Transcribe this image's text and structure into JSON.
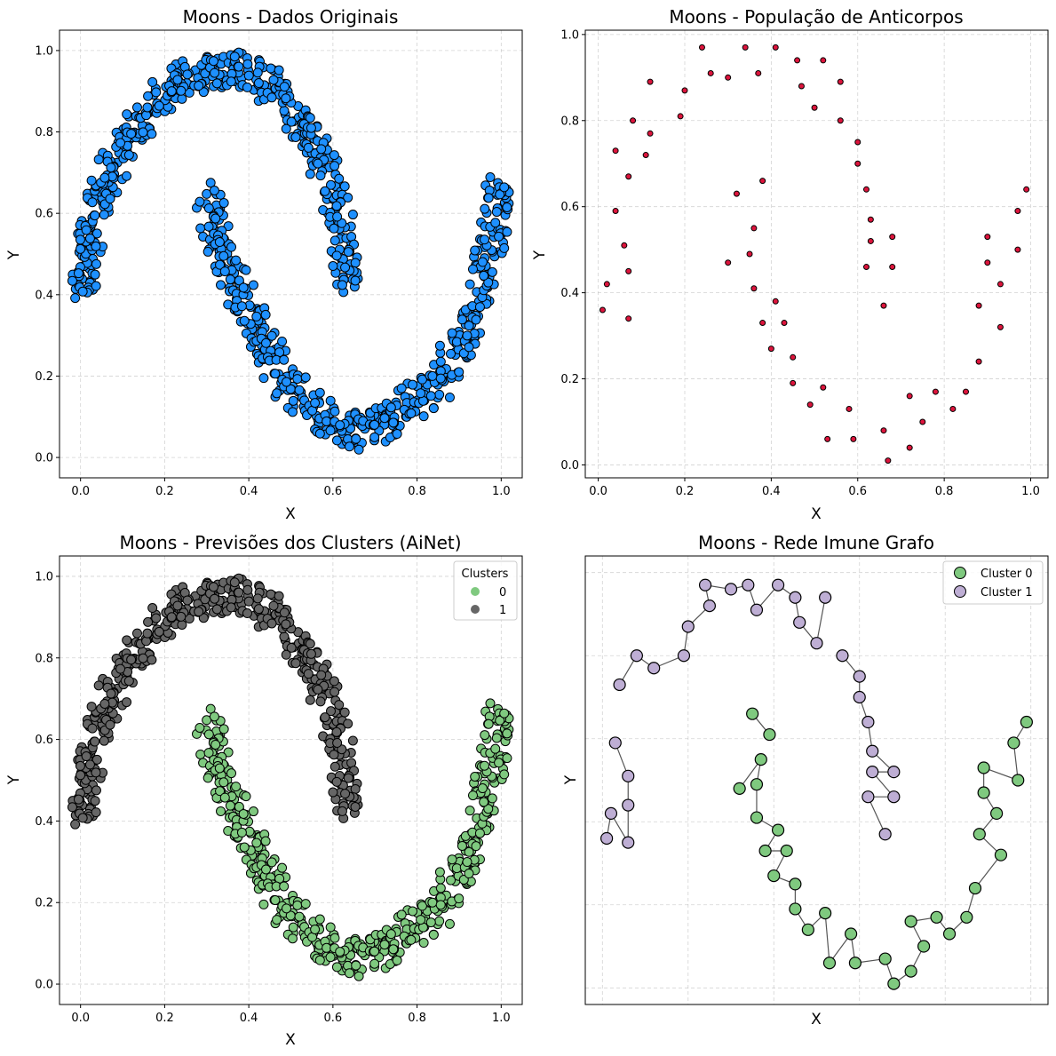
{
  "colors": {
    "original": "#1e90ff",
    "antibody": "#dc143c",
    "cluster0": "#7fc97f",
    "cluster1": "#666666",
    "graph0": "#7fc97f",
    "graph1": "#beaed4",
    "edge": "#555555",
    "markerEdge": "#000000"
  },
  "chart_data": [
    {
      "type": "scatter",
      "title": "Moons - Dados Originais",
      "xlabel": "X",
      "ylabel": "Y",
      "xlim": [
        -0.05,
        1.05
      ],
      "ylim": [
        -0.05,
        1.05
      ],
      "xticks": [
        "0.0",
        "0.2",
        "0.4",
        "0.6",
        "0.8",
        "1.0"
      ],
      "yticks": [
        "0.0",
        "0.2",
        "0.4",
        "0.6",
        "0.8",
        "1.0"
      ],
      "grid": true,
      "series": [
        {
          "points": [
            [
              0.0,
              0.41
            ],
            [
              0.01,
              0.45
            ],
            [
              0.02,
              0.52
            ],
            [
              0.03,
              0.58
            ],
            [
              0.05,
              0.64
            ],
            [
              0.07,
              0.7
            ],
            [
              0.1,
              0.76
            ],
            [
              0.13,
              0.81
            ],
            [
              0.17,
              0.86
            ],
            [
              0.21,
              0.9
            ],
            [
              0.26,
              0.93
            ],
            [
              0.31,
              0.95
            ],
            [
              0.36,
              0.96
            ],
            [
              0.41,
              0.94
            ],
            [
              0.46,
              0.91
            ],
            [
              0.5,
              0.86
            ],
            [
              0.54,
              0.8
            ],
            [
              0.57,
              0.74
            ],
            [
              0.6,
              0.66
            ],
            [
              0.62,
              0.58
            ],
            [
              0.63,
              0.5
            ],
            [
              0.63,
              0.4
            ],
            [
              0.3,
              0.65
            ],
            [
              0.32,
              0.57
            ],
            [
              0.34,
              0.5
            ],
            [
              0.37,
              0.43
            ],
            [
              0.4,
              0.36
            ],
            [
              0.43,
              0.29
            ],
            [
              0.47,
              0.22
            ],
            [
              0.51,
              0.16
            ],
            [
              0.56,
              0.11
            ],
            [
              0.61,
              0.08
            ],
            [
              0.66,
              0.06
            ],
            [
              0.71,
              0.08
            ],
            [
              0.76,
              0.11
            ],
            [
              0.81,
              0.15
            ],
            [
              0.86,
              0.2
            ],
            [
              0.9,
              0.27
            ],
            [
              0.93,
              0.35
            ],
            [
              0.95,
              0.43
            ],
            [
              0.97,
              0.52
            ],
            [
              0.99,
              0.6
            ],
            [
              0.99,
              0.67
            ]
          ]
        }
      ]
    },
    {
      "type": "scatter",
      "title": "Moons - População de Anticorpos",
      "xlabel": "X",
      "ylabel": "Y",
      "xlim": [
        -0.03,
        1.04
      ],
      "ylim": [
        -0.03,
        1.01
      ],
      "xticks": [
        "0.0",
        "0.2",
        "0.4",
        "0.6",
        "0.8",
        "1.0"
      ],
      "yticks": [
        "0.0",
        "0.2",
        "0.4",
        "0.6",
        "0.8",
        "1.0"
      ],
      "grid": true,
      "series": [
        {
          "points": [
            [
              0.01,
              0.36
            ],
            [
              0.02,
              0.42
            ],
            [
              0.04,
              0.59
            ],
            [
              0.04,
              0.73
            ],
            [
              0.06,
              0.51
            ],
            [
              0.07,
              0.45
            ],
            [
              0.07,
              0.34
            ],
            [
              0.07,
              0.67
            ],
            [
              0.08,
              0.8
            ],
            [
              0.11,
              0.72
            ],
            [
              0.12,
              0.89
            ],
            [
              0.12,
              0.77
            ],
            [
              0.19,
              0.81
            ],
            [
              0.2,
              0.87
            ],
            [
              0.24,
              0.97
            ],
            [
              0.26,
              0.91
            ],
            [
              0.3,
              0.9
            ],
            [
              0.3,
              0.47
            ],
            [
              0.32,
              0.63
            ],
            [
              0.34,
              0.97
            ],
            [
              0.35,
              0.49
            ],
            [
              0.36,
              0.55
            ],
            [
              0.36,
              0.41
            ],
            [
              0.37,
              0.91
            ],
            [
              0.38,
              0.66
            ],
            [
              0.38,
              0.33
            ],
            [
              0.4,
              0.27
            ],
            [
              0.41,
              0.97
            ],
            [
              0.41,
              0.38
            ],
            [
              0.43,
              0.33
            ],
            [
              0.45,
              0.25
            ],
            [
              0.45,
              0.19
            ],
            [
              0.46,
              0.94
            ],
            [
              0.47,
              0.88
            ],
            [
              0.49,
              0.14
            ],
            [
              0.5,
              0.83
            ],
            [
              0.52,
              0.94
            ],
            [
              0.52,
              0.18
            ],
            [
              0.53,
              0.06
            ],
            [
              0.56,
              0.89
            ],
            [
              0.56,
              0.8
            ],
            [
              0.58,
              0.13
            ],
            [
              0.59,
              0.06
            ],
            [
              0.6,
              0.75
            ],
            [
              0.6,
              0.7
            ],
            [
              0.62,
              0.64
            ],
            [
              0.63,
              0.57
            ],
            [
              0.63,
              0.52
            ],
            [
              0.62,
              0.46
            ],
            [
              0.66,
              0.37
            ],
            [
              0.66,
              0.08
            ],
            [
              0.67,
              0.01
            ],
            [
              0.68,
              0.53
            ],
            [
              0.68,
              0.46
            ],
            [
              0.72,
              0.16
            ],
            [
              0.72,
              0.04
            ],
            [
              0.75,
              0.1
            ],
            [
              0.78,
              0.17
            ],
            [
              0.82,
              0.13
            ],
            [
              0.85,
              0.17
            ],
            [
              0.88,
              0.37
            ],
            [
              0.88,
              0.24
            ],
            [
              0.9,
              0.53
            ],
            [
              0.9,
              0.47
            ],
            [
              0.93,
              0.42
            ],
            [
              0.93,
              0.32
            ],
            [
              0.97,
              0.59
            ],
            [
              0.97,
              0.5
            ],
            [
              0.99,
              0.64
            ]
          ]
        }
      ]
    },
    {
      "type": "scatter",
      "title": "Moons - Previsões dos Clusters (AiNet)",
      "xlabel": "X",
      "ylabel": "Y",
      "xlim": [
        -0.05,
        1.05
      ],
      "ylim": [
        -0.05,
        1.05
      ],
      "xticks": [
        "0.0",
        "0.2",
        "0.4",
        "0.6",
        "0.8",
        "1.0"
      ],
      "yticks": [
        "0.0",
        "0.2",
        "0.4",
        "0.6",
        "0.8",
        "1.0"
      ],
      "grid": true,
      "legend": {
        "title": "Clusters",
        "position": "top-right",
        "entries": [
          "0",
          "1"
        ]
      },
      "series": [
        {
          "name": "0",
          "points": [
            [
              0.3,
              0.65
            ],
            [
              0.32,
              0.57
            ],
            [
              0.34,
              0.5
            ],
            [
              0.37,
              0.43
            ],
            [
              0.4,
              0.36
            ],
            [
              0.43,
              0.29
            ],
            [
              0.47,
              0.22
            ],
            [
              0.51,
              0.16
            ],
            [
              0.56,
              0.11
            ],
            [
              0.61,
              0.08
            ],
            [
              0.66,
              0.06
            ],
            [
              0.71,
              0.08
            ],
            [
              0.76,
              0.11
            ],
            [
              0.81,
              0.15
            ],
            [
              0.86,
              0.2
            ],
            [
              0.9,
              0.27
            ],
            [
              0.93,
              0.35
            ],
            [
              0.95,
              0.43
            ],
            [
              0.97,
              0.52
            ],
            [
              0.99,
              0.6
            ],
            [
              0.99,
              0.67
            ]
          ]
        },
        {
          "name": "1",
          "points": [
            [
              0.0,
              0.41
            ],
            [
              0.01,
              0.45
            ],
            [
              0.02,
              0.52
            ],
            [
              0.03,
              0.58
            ],
            [
              0.05,
              0.64
            ],
            [
              0.07,
              0.7
            ],
            [
              0.1,
              0.76
            ],
            [
              0.13,
              0.81
            ],
            [
              0.17,
              0.86
            ],
            [
              0.21,
              0.9
            ],
            [
              0.26,
              0.93
            ],
            [
              0.31,
              0.95
            ],
            [
              0.36,
              0.96
            ],
            [
              0.41,
              0.94
            ],
            [
              0.46,
              0.91
            ],
            [
              0.5,
              0.86
            ],
            [
              0.54,
              0.8
            ],
            [
              0.57,
              0.74
            ],
            [
              0.6,
              0.66
            ],
            [
              0.62,
              0.58
            ],
            [
              0.63,
              0.5
            ],
            [
              0.63,
              0.4
            ]
          ]
        }
      ]
    },
    {
      "type": "scatter",
      "title": "Moons - Rede Imune Grafo",
      "xlabel": "X",
      "ylabel": "Y",
      "xlim": [
        -0.04,
        1.04
      ],
      "ylim": [
        -0.04,
        1.04
      ],
      "xticks": [],
      "yticks": [],
      "grid": true,
      "legend": {
        "position": "top-right",
        "entries": [
          "Cluster 0",
          "Cluster 1"
        ]
      },
      "series": [
        {
          "name": "Cluster 0",
          "points": [
            [
              0.99,
              0.64
            ],
            [
              0.96,
              0.59
            ],
            [
              0.97,
              0.5
            ],
            [
              0.89,
              0.53
            ],
            [
              0.89,
              0.47
            ],
            [
              0.92,
              0.42
            ],
            [
              0.88,
              0.37
            ],
            [
              0.93,
              0.32
            ],
            [
              0.87,
              0.24
            ],
            [
              0.85,
              0.17
            ],
            [
              0.81,
              0.13
            ],
            [
              0.78,
              0.17
            ],
            [
              0.72,
              0.16
            ],
            [
              0.75,
              0.1
            ],
            [
              0.72,
              0.04
            ],
            [
              0.68,
              0.01
            ],
            [
              0.66,
              0.07
            ],
            [
              0.59,
              0.06
            ],
            [
              0.58,
              0.13
            ],
            [
              0.53,
              0.06
            ],
            [
              0.52,
              0.18
            ],
            [
              0.48,
              0.14
            ],
            [
              0.45,
              0.19
            ],
            [
              0.45,
              0.25
            ],
            [
              0.4,
              0.27
            ],
            [
              0.43,
              0.33
            ],
            [
              0.38,
              0.33
            ],
            [
              0.41,
              0.38
            ],
            [
              0.36,
              0.41
            ],
            [
              0.36,
              0.49
            ],
            [
              0.37,
              0.55
            ],
            [
              0.32,
              0.48
            ],
            [
              0.35,
              0.66
            ],
            [
              0.39,
              0.61
            ]
          ]
        },
        {
          "name": "Cluster 1",
          "points": [
            [
              0.01,
              0.36
            ],
            [
              0.02,
              0.42
            ],
            [
              0.06,
              0.35
            ],
            [
              0.06,
              0.44
            ],
            [
              0.06,
              0.51
            ],
            [
              0.03,
              0.59
            ],
            [
              0.04,
              0.73
            ],
            [
              0.08,
              0.8
            ],
            [
              0.12,
              0.77
            ],
            [
              0.19,
              0.8
            ],
            [
              0.2,
              0.87
            ],
            [
              0.25,
              0.92
            ],
            [
              0.24,
              0.97
            ],
            [
              0.3,
              0.96
            ],
            [
              0.34,
              0.97
            ],
            [
              0.36,
              0.91
            ],
            [
              0.41,
              0.97
            ],
            [
              0.45,
              0.94
            ],
            [
              0.46,
              0.88
            ],
            [
              0.5,
              0.83
            ],
            [
              0.52,
              0.94
            ],
            [
              0.56,
              0.8
            ],
            [
              0.6,
              0.75
            ],
            [
              0.6,
              0.7
            ],
            [
              0.62,
              0.64
            ],
            [
              0.63,
              0.57
            ],
            [
              0.68,
              0.52
            ],
            [
              0.63,
              0.52
            ],
            [
              0.68,
              0.46
            ],
            [
              0.62,
              0.46
            ],
            [
              0.66,
              0.37
            ]
          ]
        }
      ]
    }
  ]
}
